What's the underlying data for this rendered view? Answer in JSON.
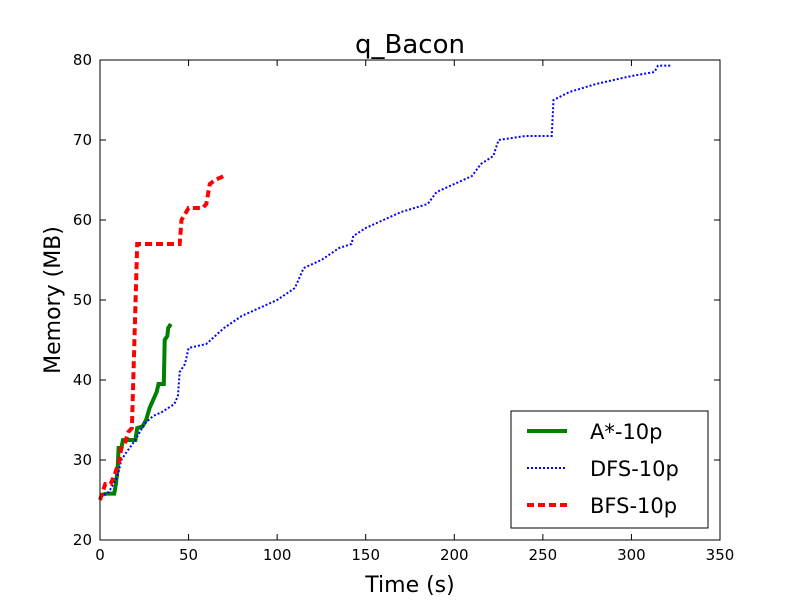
{
  "chart_data": {
    "type": "line",
    "title": "q_Bacon",
    "xlabel": "Time (s)",
    "ylabel": "Memory (MB)",
    "xlim": [
      0,
      350
    ],
    "ylim": [
      20,
      80
    ],
    "xticks": [
      0,
      50,
      100,
      150,
      200,
      250,
      300,
      350
    ],
    "yticks": [
      20,
      30,
      40,
      50,
      60,
      70,
      80
    ],
    "grid": false,
    "legend": "lower right",
    "series": [
      {
        "name": "A*-10p",
        "color": "#008000",
        "linestyle": "solid",
        "points": [
          [
            0,
            25.6
          ],
          [
            4,
            25.8
          ],
          [
            8,
            25.8
          ],
          [
            9,
            27
          ],
          [
            10,
            29
          ],
          [
            10.5,
            31.5
          ],
          [
            12,
            31.5
          ],
          [
            13,
            32.5
          ],
          [
            20,
            32.5
          ],
          [
            21,
            34
          ],
          [
            24,
            34.2
          ],
          [
            26,
            35
          ],
          [
            28,
            36.5
          ],
          [
            30,
            37.5
          ],
          [
            32,
            38.5
          ],
          [
            33,
            39.5
          ],
          [
            36,
            39.5
          ],
          [
            36.5,
            45
          ],
          [
            38,
            45.5
          ],
          [
            38.5,
            46.5
          ],
          [
            40,
            47
          ]
        ]
      },
      {
        "name": "DFS-10p",
        "color": "#0000ff",
        "linestyle": "dotted",
        "points": [
          [
            0,
            25.5
          ],
          [
            5,
            26
          ],
          [
            10,
            28
          ],
          [
            12,
            30
          ],
          [
            15,
            31
          ],
          [
            20,
            32.5
          ],
          [
            25,
            34.5
          ],
          [
            30,
            35.5
          ],
          [
            35,
            36
          ],
          [
            42,
            37
          ],
          [
            44,
            38
          ],
          [
            45,
            41
          ],
          [
            48,
            42
          ],
          [
            50,
            44
          ],
          [
            60,
            44.5
          ],
          [
            70,
            46.5
          ],
          [
            80,
            48
          ],
          [
            90,
            49
          ],
          [
            100,
            50
          ],
          [
            110,
            51.5
          ],
          [
            115,
            54
          ],
          [
            125,
            55
          ],
          [
            135,
            56.5
          ],
          [
            142,
            57
          ],
          [
            143,
            58
          ],
          [
            150,
            59
          ],
          [
            160,
            60
          ],
          [
            170,
            61
          ],
          [
            185,
            62
          ],
          [
            190,
            63.5
          ],
          [
            200,
            64.5
          ],
          [
            210,
            65.5
          ],
          [
            215,
            67
          ],
          [
            222,
            68
          ],
          [
            225,
            70
          ],
          [
            240,
            70.5
          ],
          [
            255,
            70.5
          ],
          [
            256,
            75
          ],
          [
            265,
            76
          ],
          [
            280,
            77
          ],
          [
            290,
            77.5
          ],
          [
            300,
            78
          ],
          [
            313,
            78.5
          ],
          [
            315,
            79.3
          ],
          [
            322,
            79.3
          ]
        ]
      },
      {
        "name": "BFS-10p",
        "color": "#ff0000",
        "linestyle": "dashed",
        "points": [
          [
            0,
            25
          ],
          [
            3,
            27
          ],
          [
            6,
            27
          ],
          [
            8,
            28
          ],
          [
            11,
            30
          ],
          [
            12,
            31.5
          ],
          [
            14,
            32
          ],
          [
            16,
            33.5
          ],
          [
            18,
            34
          ],
          [
            21,
            57
          ],
          [
            45,
            57
          ],
          [
            46,
            60
          ],
          [
            50,
            61.5
          ],
          [
            58,
            61.5
          ],
          [
            60,
            62
          ],
          [
            62,
            64.5
          ],
          [
            65,
            65
          ],
          [
            70,
            65.5
          ]
        ]
      }
    ]
  }
}
